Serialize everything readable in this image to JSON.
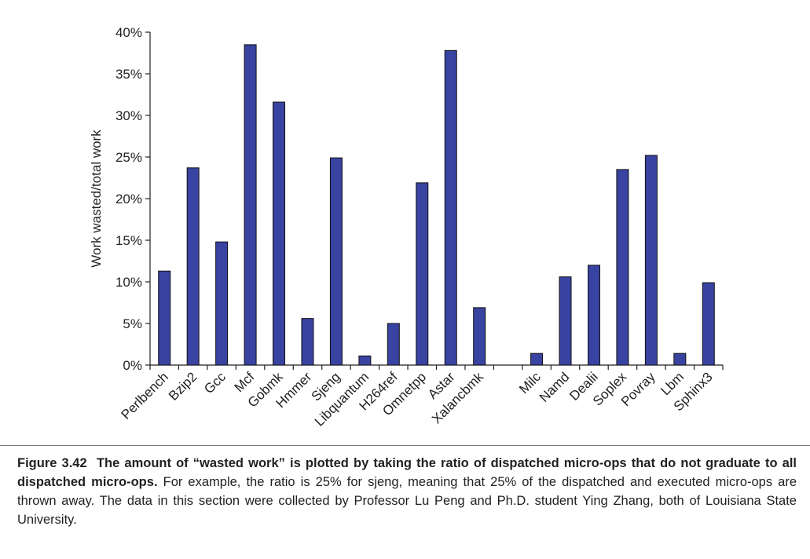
{
  "chart_data": {
    "type": "bar",
    "ylabel": "Work wasted/total work",
    "xlabel": "",
    "ylim": [
      0,
      40
    ],
    "yticks": [
      "0%",
      "5%",
      "10%",
      "15%",
      "20%",
      "25%",
      "30%",
      "35%",
      "40%"
    ],
    "bar_color": "#3943a1",
    "grid": false,
    "groups": [
      {
        "categories": [
          "Perlbench",
          "Bzip2",
          "Gcc",
          "Mcf",
          "Gobmk",
          "Hmmer",
          "Sjeng",
          "Libquantum",
          "H264ref",
          "Omnetpp",
          "Astar",
          "Xalancbmk"
        ],
        "values": [
          11.3,
          23.7,
          14.8,
          38.5,
          31.6,
          5.6,
          24.9,
          1.1,
          5.0,
          21.9,
          37.8,
          6.9
        ]
      },
      {
        "categories": [
          "Milc",
          "Namd",
          "Dealii",
          "Soplex",
          "Povray",
          "Lbm",
          "Sphinx3"
        ],
        "values": [
          1.4,
          10.6,
          12.0,
          23.5,
          25.2,
          1.4,
          9.9
        ]
      }
    ]
  },
  "caption": {
    "label": "Figure 3.42",
    "bold_text": "The amount of “wasted work” is plotted by taking the ratio of dispatched micro-ops that do not graduate to all dispatched micro-ops.",
    "body_text": "For example, the ratio is 25% for sjeng, meaning that 25% of the dispatched and executed micro-ops are thrown away. The data in this section were collected by Professor Lu Peng and Ph.D. student Ying Zhang, both of Louisiana State University."
  }
}
